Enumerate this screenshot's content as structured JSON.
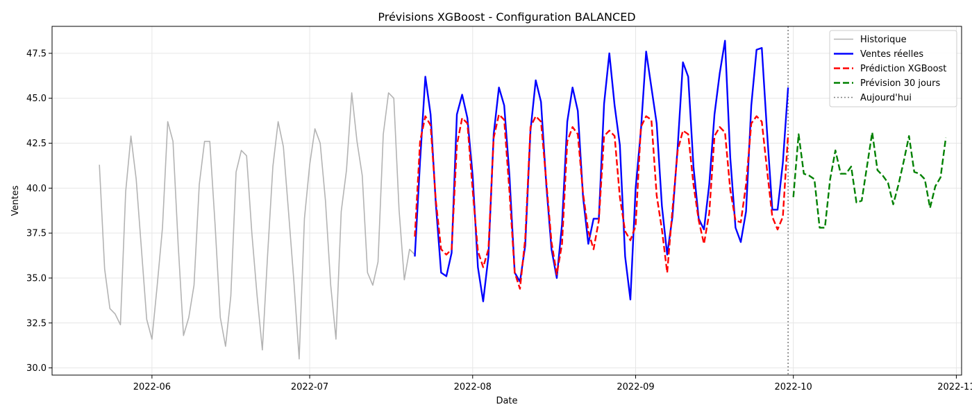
{
  "chart_data": {
    "type": "line",
    "title": "Prévisions XGBoost - Configuration BALANCED",
    "xlabel": "Date",
    "ylabel": "Ventes",
    "x_axis_type": "date",
    "xlim": [
      "2022-05-13",
      "2022-11-02"
    ],
    "ylim": [
      29.6,
      49.0
    ],
    "x_ticks": [
      "2022-06-01",
      "2022-07-01",
      "2022-08-01",
      "2022-09-01",
      "2022-10-01",
      "2022-11-01"
    ],
    "x_tick_labels": [
      "2022-06",
      "2022-07",
      "2022-08",
      "2022-09",
      "2022-10",
      "2022-11"
    ],
    "y_ticks": [
      30.0,
      32.5,
      35.0,
      37.5,
      40.0,
      42.5,
      45.0,
      47.5
    ],
    "y_tick_labels": [
      "30.0",
      "32.5",
      "35.0",
      "37.5",
      "40.0",
      "42.5",
      "45.0",
      "47.5"
    ],
    "grid": true,
    "legend_position": "top-right",
    "today": {
      "name": "Aujourd'hui",
      "x": "2022-09-30",
      "color": "#808080",
      "style": "dotted"
    },
    "series": [
      {
        "name": "Historique",
        "color": "#b3b3b3",
        "style": "solid",
        "x_start": "2022-05-22",
        "values": [
          41.3,
          35.5,
          33.3,
          33.0,
          32.4,
          39.8,
          42.9,
          40.5,
          36.6,
          32.7,
          31.6,
          34.6,
          37.8,
          43.7,
          42.6,
          36.8,
          31.8,
          32.8,
          34.6,
          40.2,
          42.6,
          42.6,
          38.0,
          32.8,
          31.2,
          34.0,
          40.9,
          42.1,
          41.8,
          37.5,
          34.0,
          31.0,
          36.3,
          41.2,
          43.7,
          42.3,
          38.6,
          34.8,
          30.5,
          38.3,
          41.3,
          43.3,
          42.5,
          39.3,
          34.6,
          31.6,
          38.7,
          41.0,
          45.3,
          42.6,
          40.7,
          35.3,
          34.6,
          35.9,
          43.0,
          45.3,
          45.0,
          38.8,
          34.9,
          36.6,
          36.3
        ]
      },
      {
        "name": "Ventes réelles",
        "color": "#0000ff",
        "style": "solid",
        "x_start": "2022-07-21",
        "values": [
          36.2,
          41.5,
          46.2,
          44.1,
          39.1,
          35.3,
          35.1,
          36.4,
          44.1,
          45.2,
          43.9,
          40.7,
          35.6,
          33.7,
          36.2,
          43.0,
          45.6,
          44.6,
          40.7,
          35.3,
          34.8,
          36.8,
          43.2,
          46.0,
          44.8,
          40.2,
          36.6,
          35.0,
          38.0,
          43.7,
          45.6,
          44.3,
          39.5,
          36.9,
          38.3,
          38.3,
          44.7,
          47.5,
          44.6,
          42.4,
          36.2,
          33.8,
          40.0,
          43.2,
          47.6,
          45.6,
          43.6,
          39.0,
          36.3,
          38.4,
          42.3,
          47.0,
          46.2,
          41.2,
          38.3,
          37.7,
          40.2,
          44.1,
          46.4,
          48.2,
          41.7,
          37.8,
          37.0,
          38.7,
          44.6,
          47.7,
          47.8,
          43.1,
          38.8,
          38.8,
          41.4,
          45.6
        ]
      },
      {
        "name": "Prédiction XGBoost",
        "color": "#ff0000",
        "style": "dashed",
        "x_start": "2022-07-21",
        "values": [
          37.3,
          42.6,
          44.0,
          43.5,
          39.3,
          36.6,
          36.3,
          36.6,
          42.4,
          43.9,
          43.6,
          39.9,
          36.5,
          35.6,
          36.6,
          42.8,
          44.1,
          43.8,
          39.8,
          35.3,
          34.4,
          37.2,
          43.4,
          44.0,
          43.7,
          40.4,
          37.0,
          35.2,
          36.9,
          42.6,
          43.4,
          43.0,
          39.7,
          37.6,
          36.6,
          38.2,
          42.9,
          43.2,
          42.9,
          39.5,
          37.6,
          37.1,
          37.9,
          43.4,
          44.0,
          43.8,
          39.6,
          37.7,
          35.3,
          38.8,
          42.1,
          43.2,
          43.0,
          40.2,
          38.2,
          36.9,
          38.6,
          42.9,
          43.4,
          43.1,
          39.9,
          38.2,
          38.1,
          40.2,
          43.6,
          44.0,
          43.7,
          41.0,
          38.4,
          37.7,
          38.4,
          43.0
        ]
      },
      {
        "name": "Prévision 30 jours",
        "color": "#008000",
        "style": "dashed",
        "x_start": "2022-10-01",
        "values": [
          39.5,
          43.0,
          40.8,
          40.7,
          40.5,
          37.8,
          37.8,
          40.5,
          42.1,
          40.8,
          40.8,
          41.2,
          39.2,
          39.3,
          41.2,
          43.1,
          41.0,
          40.7,
          40.3,
          39.1,
          40.2,
          41.5,
          42.9,
          40.9,
          40.8,
          40.5,
          38.9,
          40.1,
          40.6,
          42.8
        ]
      }
    ]
  }
}
